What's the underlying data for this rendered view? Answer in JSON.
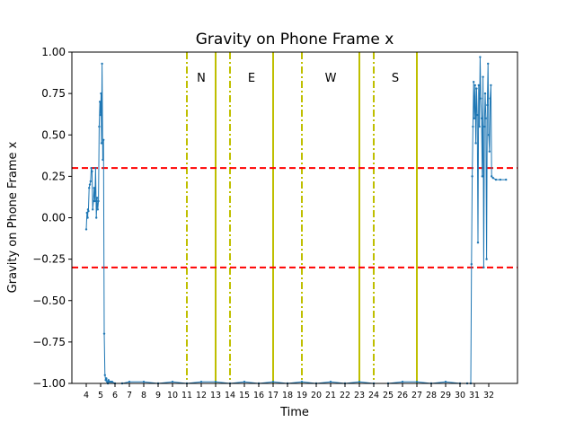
{
  "chart_data": {
    "type": "line",
    "title": "Gravity on Phone Frame x",
    "xlabel": "Time",
    "ylabel": "Gravity on Phone Frame x",
    "xlim": [
      3.0,
      34.0
    ],
    "ylim": [
      -1.0,
      1.0
    ],
    "grid": false,
    "x_tick_values": [
      4,
      5,
      6,
      7,
      8,
      9,
      10,
      11,
      12,
      13,
      14,
      15,
      16,
      17,
      18,
      19,
      20,
      21,
      22,
      23,
      24,
      25,
      26,
      27,
      28,
      29,
      30,
      31,
      32
    ],
    "y_tick_values": [
      -1.0,
      -0.75,
      -0.5,
      -0.25,
      0.0,
      0.25,
      0.5,
      0.75,
      1.0
    ],
    "y_tick_labels": [
      "−1.00",
      "−0.75",
      "−0.50",
      "−0.25",
      "0.00",
      "0.25",
      "0.50",
      "0.75",
      "1.00"
    ],
    "threshold_lines": [
      {
        "y": 0.3,
        "color": "#ff0000",
        "style": "dashed"
      },
      {
        "y": -0.3,
        "color": "#ff0000",
        "style": "dashed"
      }
    ],
    "direction_markers": [
      {
        "label": "N",
        "start": 11,
        "end": 13
      },
      {
        "label": "E",
        "start": 14,
        "end": 17
      },
      {
        "label": "W",
        "start": 19,
        "end": 23
      },
      {
        "label": "S",
        "start": 24,
        "end": 27
      }
    ],
    "marker_color": "#bfbf00",
    "series": [
      {
        "color": "#1f77b4",
        "x": [
          4.0,
          4.05,
          4.1,
          4.12,
          4.15,
          4.2,
          4.25,
          4.3,
          4.35,
          4.4,
          4.45,
          4.5,
          4.55,
          4.6,
          4.65,
          4.7,
          4.75,
          4.8,
          4.85,
          4.9,
          4.95,
          5.0,
          5.03,
          5.06,
          5.1,
          5.15,
          5.2,
          5.25,
          5.3,
          5.35,
          5.4,
          5.45,
          5.5,
          5.55,
          5.6,
          5.7,
          5.8,
          6.0,
          6.5,
          7.0,
          8.0,
          9.0,
          10.0,
          11.0,
          12.0,
          13.0,
          14.0,
          15.0,
          16.0,
          17.0,
          18.0,
          19.0,
          20.0,
          21.0,
          22.0,
          23.0,
          24.0,
          25.0,
          26.0,
          27.0,
          28.0,
          29.0,
          30.0,
          30.5,
          30.75,
          30.8,
          30.85,
          30.9,
          30.95,
          31.0,
          31.05,
          31.1,
          31.15,
          31.2,
          31.25,
          31.3,
          31.35,
          31.4,
          31.45,
          31.5,
          31.55,
          31.6,
          31.65,
          31.7,
          31.75,
          31.8,
          31.85,
          31.9,
          31.95,
          32.0,
          32.05,
          32.1,
          32.15,
          32.2,
          32.3,
          32.5,
          32.8,
          33.2
        ],
        "y": [
          -0.07,
          0.03,
          0.0,
          0.05,
          0.04,
          0.18,
          0.2,
          0.22,
          0.3,
          0.28,
          0.05,
          0.1,
          0.18,
          0.1,
          0.3,
          0.0,
          0.12,
          0.05,
          0.1,
          0.55,
          0.7,
          0.62,
          0.75,
          0.45,
          0.93,
          0.35,
          0.47,
          -0.7,
          -0.95,
          -0.98,
          -0.97,
          -0.99,
          -1.0,
          -0.98,
          -0.99,
          -0.99,
          -0.99,
          -1.0,
          -1.0,
          -0.99,
          -0.99,
          -1.0,
          -0.99,
          -1.0,
          -0.99,
          -0.99,
          -1.0,
          -0.99,
          -1.0,
          -0.99,
          -1.0,
          -0.99,
          -1.0,
          -0.99,
          -1.0,
          -0.99,
          -1.0,
          -1.0,
          -0.99,
          -0.99,
          -1.0,
          -0.99,
          -1.0,
          -1.0,
          -1.0,
          -0.28,
          0.25,
          0.55,
          0.82,
          0.6,
          0.8,
          0.45,
          0.78,
          0.62,
          -0.15,
          0.8,
          0.55,
          0.97,
          0.72,
          0.6,
          0.25,
          0.85,
          -0.3,
          0.55,
          0.75,
          0.6,
          -0.25,
          0.68,
          0.93,
          0.5,
          0.4,
          0.72,
          0.8,
          0.25,
          0.24,
          0.23,
          0.23,
          0.23
        ]
      }
    ]
  }
}
